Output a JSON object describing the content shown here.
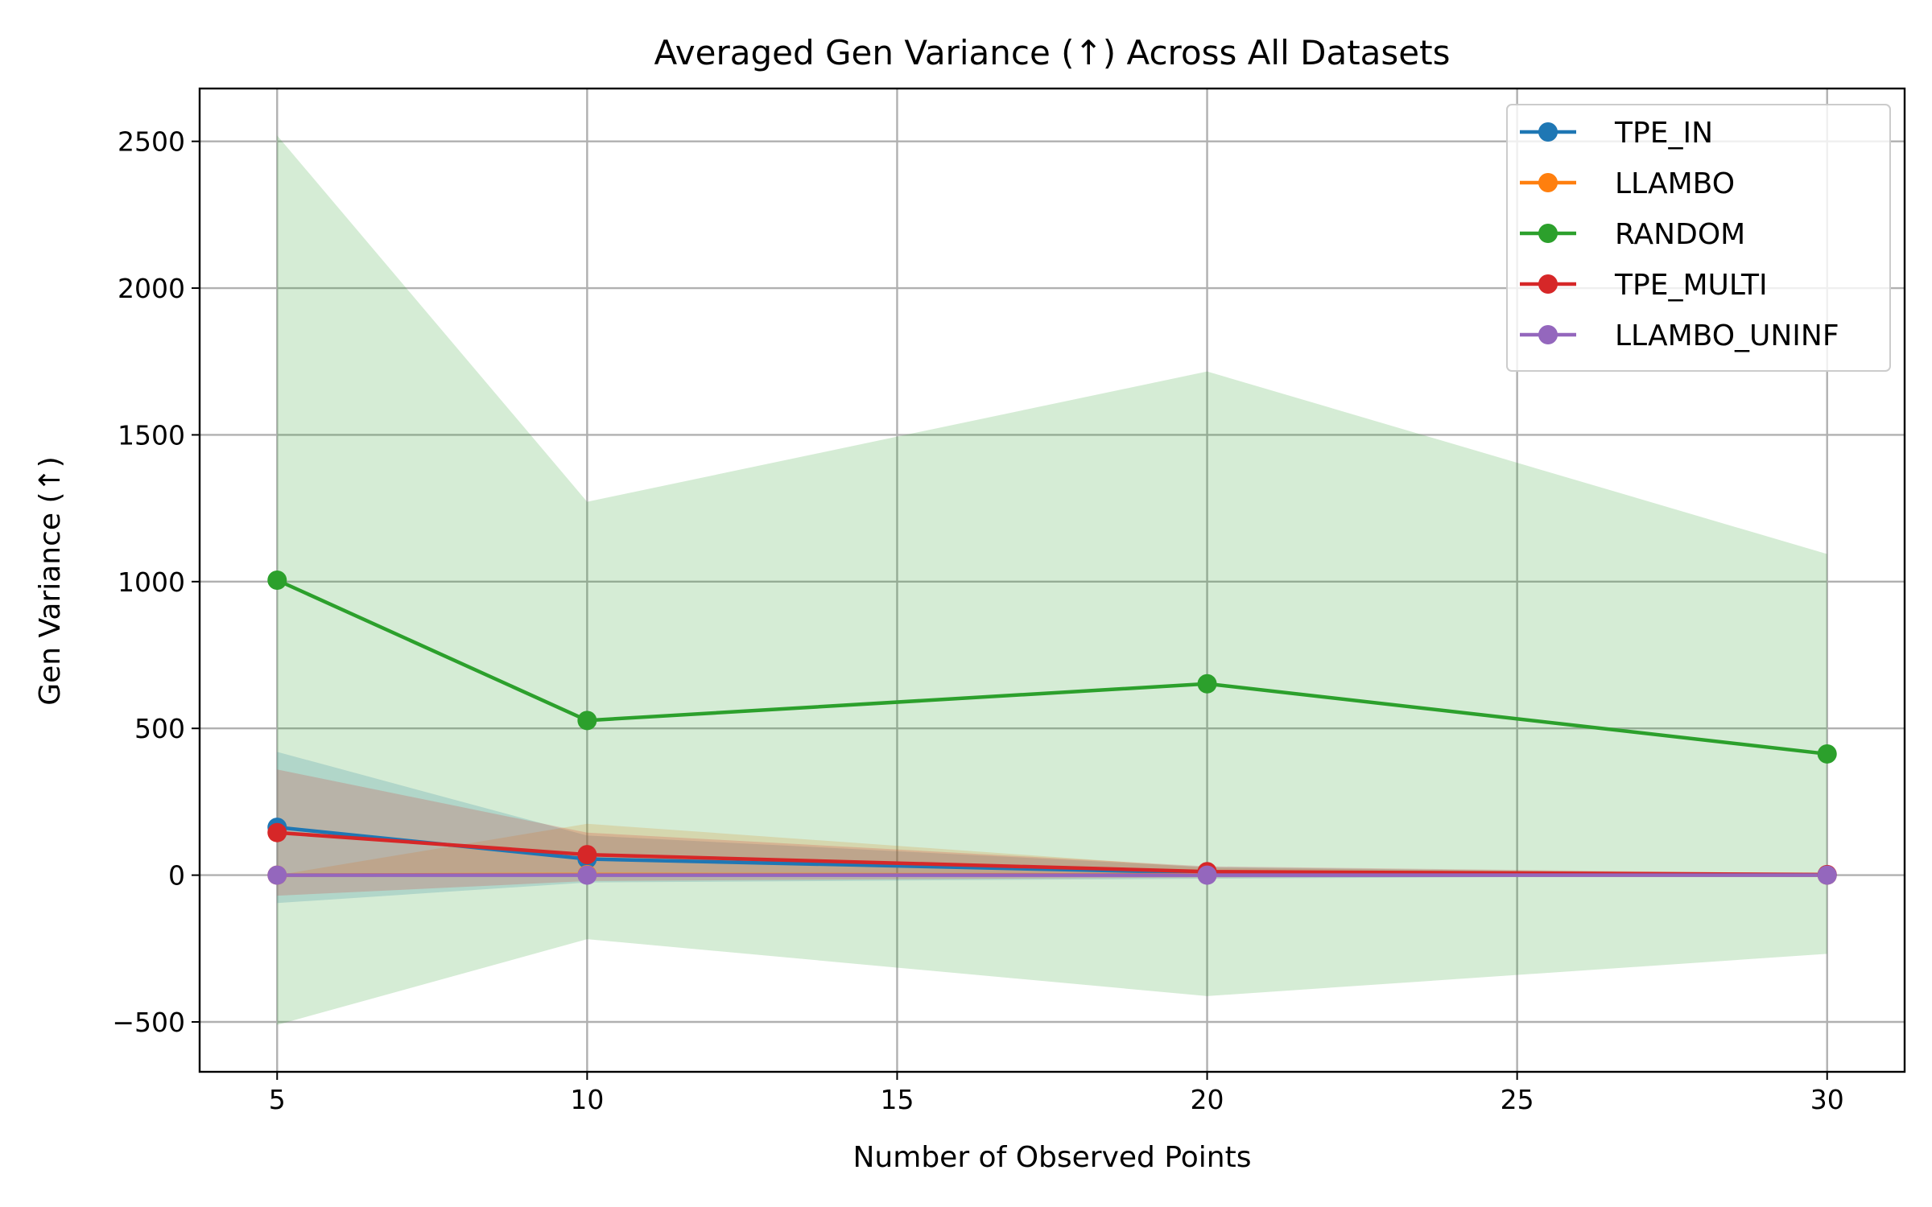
{
  "chart_data": {
    "type": "line",
    "title": "Averaged Gen Variance (↑) Across All Datasets",
    "xlabel": "Number of Observed Points",
    "ylabel": "Gen Variance (↑)",
    "xlim": [
      3.75,
      31.25
    ],
    "ylim": [
      -670,
      2680
    ],
    "xticks": [
      5,
      10,
      15,
      20,
      25,
      30
    ],
    "yticks": [
      -500,
      0,
      500,
      1000,
      1500,
      2000,
      2500
    ],
    "xtick_labels": [
      "5",
      "10",
      "15",
      "20",
      "25",
      "30"
    ],
    "ytick_labels": [
      "−500",
      "0",
      "500",
      "1000",
      "1500",
      "2000",
      "2500"
    ],
    "grid": true,
    "legend_position": "top-right",
    "x": [
      5,
      10,
      20,
      30
    ],
    "series": [
      {
        "name": "TPE_IN",
        "color": "#1f77b4",
        "values": [
          163,
          55,
          8,
          1
        ],
        "lower": [
          -95,
          -25,
          -12,
          -1
        ],
        "upper": [
          420,
          135,
          28,
          3
        ]
      },
      {
        "name": "LLAMBO",
        "color": "#ff7f0e",
        "values": [
          0,
          2,
          1,
          0
        ],
        "lower": [
          0,
          -1,
          0,
          0
        ],
        "upper": [
          0,
          175,
          25,
          5
        ]
      },
      {
        "name": "RANDOM",
        "color": "#2ca02c",
        "values": [
          1005,
          527,
          652,
          413
        ],
        "lower": [
          -510,
          -218,
          -412,
          -268
        ],
        "upper": [
          2520,
          1272,
          1716,
          1094
        ]
      },
      {
        "name": "TPE_MULTI",
        "color": "#d62728",
        "values": [
          145,
          70,
          12,
          2
        ],
        "lower": [
          -70,
          -20,
          -8,
          -2
        ],
        "upper": [
          360,
          145,
          30,
          6
        ]
      },
      {
        "name": "LLAMBO_UNINF",
        "color": "#9467bd",
        "values": [
          0,
          0,
          0,
          0
        ],
        "lower": [
          0,
          0,
          0,
          0
        ],
        "upper": [
          0,
          0,
          0,
          0
        ]
      }
    ]
  }
}
